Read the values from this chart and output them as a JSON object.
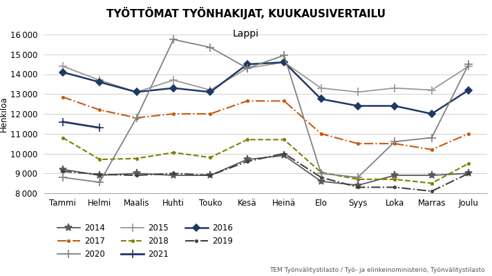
{
  "title": "TYÖTTÖMAT TYÖNHAKIJAT, KUUKAUSIVERTAILU",
  "subtitle": "Lappi",
  "ylabel": "Henkilöä",
  "source": "TEM Työnvälitystilasto / Työ- ja elinkeinoministeriö, Työnvälitystilasto",
  "months": [
    "Tammi",
    "Helmi",
    "Maalis",
    "Huhti",
    "Touko",
    "Kesä",
    "Heinä",
    "Elo",
    "Syys",
    "Loka",
    "Marras",
    "Joulu"
  ],
  "ylim": [
    8000,
    16000
  ],
  "yticks": [
    8000,
    9000,
    10000,
    11000,
    12000,
    13000,
    14000,
    15000,
    16000
  ],
  "series": [
    {
      "year": "2014",
      "values": [
        9200,
        8900,
        9000,
        8900,
        8900,
        9700,
        9900,
        8600,
        8400,
        8900,
        8900,
        9000
      ],
      "color": "#595959",
      "marker": "*",
      "linestyle": "-",
      "linewidth": 1.3,
      "markersize": 8
    },
    {
      "year": "2015",
      "values": [
        14400,
        13700,
        13100,
        13700,
        13200,
        14300,
        14600,
        13300,
        13100,
        13300,
        13200,
        14400
      ],
      "color": "#999999",
      "marker": "P",
      "linestyle": "-",
      "linewidth": 1.3,
      "markersize": 7
    },
    {
      "year": "2016",
      "values": [
        14100,
        13600,
        13100,
        13300,
        13100,
        14500,
        14600,
        12750,
        12400,
        12400,
        12000,
        13200
      ],
      "color": "#1f3864",
      "marker": "D",
      "linestyle": "-",
      "linewidth": 1.8,
      "markersize": 5
    },
    {
      "year": "2017",
      "values": [
        12850,
        12200,
        11800,
        12000,
        12000,
        12650,
        12650,
        11000,
        10500,
        10500,
        10200,
        11000
      ],
      "color": "#c55a11",
      "marker": "o",
      "linestyle": "-.",
      "linewidth": 1.5,
      "markersize": 4
    },
    {
      "year": "2018",
      "values": [
        10800,
        9700,
        9750,
        10050,
        9800,
        10700,
        10700,
        9050,
        8700,
        8700,
        8500,
        9500
      ],
      "color": "#7f7f00",
      "marker": "o",
      "linestyle": "--",
      "linewidth": 1.5,
      "markersize": 4
    },
    {
      "year": "2019",
      "values": [
        9100,
        8950,
        8900,
        9000,
        8900,
        9600,
        10000,
        8800,
        8300,
        8300,
        8100,
        9000
      ],
      "color": "#404040",
      "marker": "o",
      "linestyle": "-.",
      "linewidth": 1.5,
      "markersize": 4
    },
    {
      "year": "2020",
      "values": [
        8800,
        8550,
        11800,
        15750,
        15350,
        14300,
        14950,
        9000,
        8800,
        10600,
        10800,
        14500
      ],
      "color": "#808080",
      "marker": "x",
      "linestyle": "-",
      "linewidth": 1.3,
      "markersize": 7
    },
    {
      "year": "2021",
      "values": [
        11600,
        11300,
        null,
        null,
        null,
        null,
        null,
        null,
        null,
        null,
        null,
        null
      ],
      "color": "#1f3864",
      "marker": "P",
      "linestyle": "-",
      "linewidth": 2.0,
      "markersize": 8
    }
  ],
  "legend_order": [
    "2014",
    "2017",
    "2020",
    "2015",
    "2018",
    "2021",
    "2016",
    "2019"
  ]
}
